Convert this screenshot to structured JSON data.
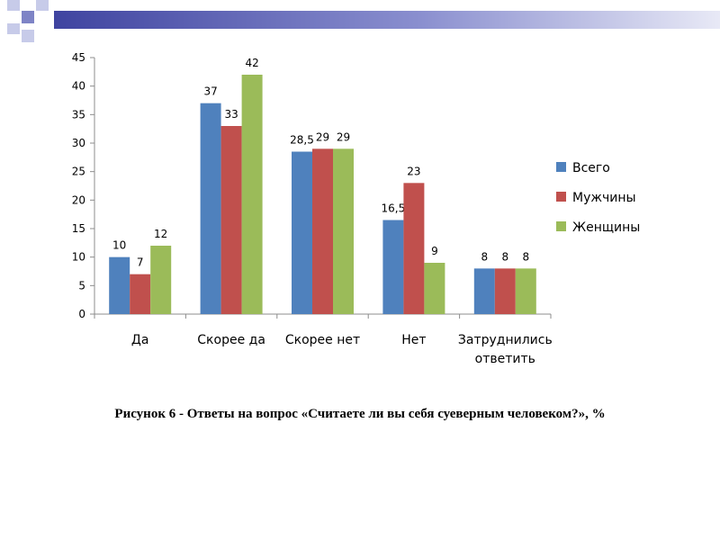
{
  "colors": {
    "header_bar": "#4a4fa8",
    "square_light": "#c7cbe9",
    "square_dark": "#7e84c6"
  },
  "caption": "Рисунок 6 - Ответы  на вопрос «Считаете ли вы себя суеверным человеком?», %",
  "chart_data": {
    "type": "bar",
    "title": "",
    "xlabel": "",
    "ylabel": "",
    "ylim": [
      0,
      45
    ],
    "yticks": [
      0,
      5,
      10,
      15,
      20,
      25,
      30,
      35,
      40,
      45
    ],
    "grid": false,
    "legend_position": "right",
    "categories": [
      [
        "Да"
      ],
      [
        "Скорее да"
      ],
      [
        "Скорее нет"
      ],
      [
        "Нет"
      ],
      [
        "Затруднились",
        "ответить"
      ]
    ],
    "series": [
      {
        "name": "Всего",
        "color": "#4f81bd",
        "values": [
          10,
          37,
          28.5,
          16.5,
          8
        ],
        "labels": [
          "10",
          "37",
          "28,5",
          "16,5",
          "8"
        ]
      },
      {
        "name": "Мужчины",
        "color": "#c0504d",
        "values": [
          7,
          33,
          29,
          23,
          8
        ],
        "labels": [
          "7",
          "33",
          "29",
          "23",
          "8"
        ]
      },
      {
        "name": "Женщины",
        "color": "#9bbb59",
        "values": [
          12,
          42,
          29,
          9,
          8
        ],
        "labels": [
          "12",
          "42",
          "29",
          "9",
          "8"
        ]
      }
    ]
  }
}
